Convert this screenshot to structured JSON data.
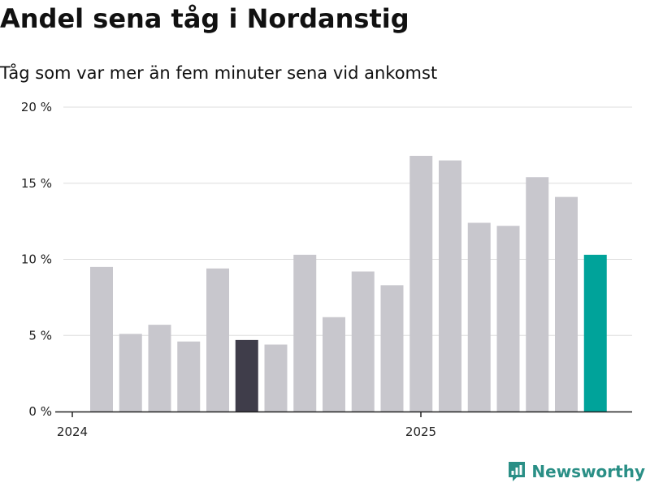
{
  "chart_data": {
    "type": "bar",
    "title": "Andel sena tåg i Nordanstig",
    "subtitle": "Tåg som var mer än fem minuter sena vid ankomst",
    "yticks": [
      "0 %",
      "5 %",
      "10 %",
      "15 %",
      "20 %"
    ],
    "ylim": [
      0,
      20
    ],
    "grid": true,
    "x_tick_labels": [
      {
        "label": "2024",
        "at_index": 0
      },
      {
        "label": "2025",
        "at_index": 12
      }
    ],
    "values": [
      9.5,
      5.1,
      5.7,
      4.6,
      9.4,
      4.7,
      4.4,
      10.3,
      6.2,
      9.2,
      8.3,
      16.8,
      16.5,
      12.4,
      12.2,
      15.4,
      14.1,
      10.3
    ],
    "highlight": {
      "dark_index": 5,
      "accent_index": 17
    },
    "colors": {
      "default": "#c8c7cd",
      "dark": "#3f3d4a",
      "accent": "#00a39a",
      "grid": "#dddddd",
      "axis": "#222222"
    }
  },
  "brand": {
    "name": "Newsworthy",
    "color": "#2a8f86"
  }
}
